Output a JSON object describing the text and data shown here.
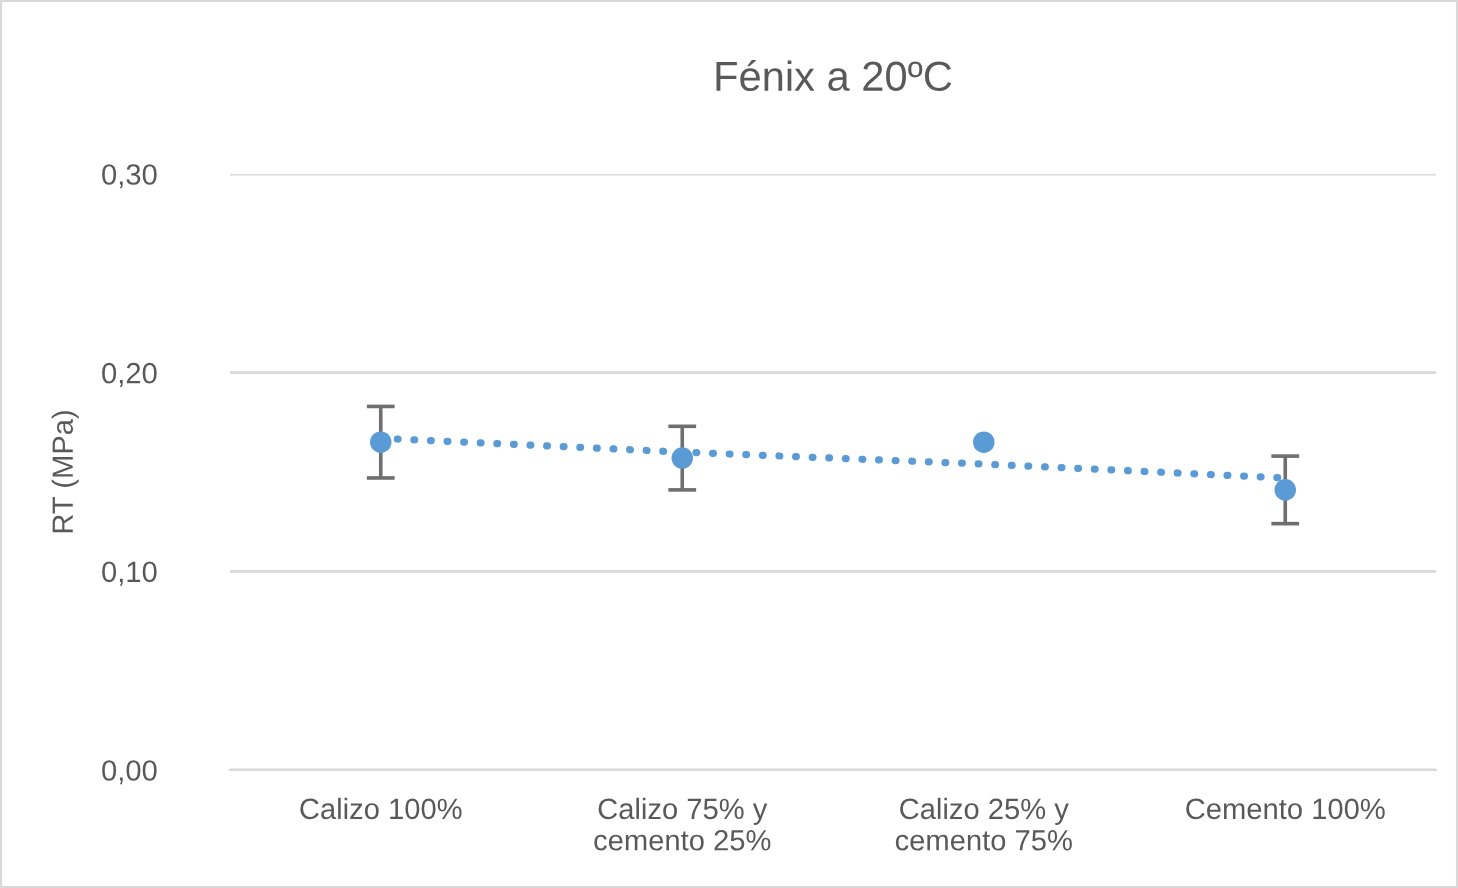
{
  "chart_data": {
    "type": "scatter",
    "title": "Fénix a 20ºC",
    "ylabel": "RT (MPa)",
    "categories": [
      "Calizo 100%",
      "Calizo 75% y\ncemento 25%",
      "Calizo 25% y\ncemento 75%",
      "Cemento 100%"
    ],
    "series": [
      {
        "color": "#5b9bd5",
        "marker": "circle",
        "values": [
          0.165,
          0.157,
          0.165,
          0.141
        ],
        "errors": [
          0.018,
          0.016,
          null,
          0.017
        ]
      },
      {
        "type": "line",
        "color": "#5b9bd5",
        "marker": "none",
        "line_style": "dotted",
        "values": [
          0.167,
          0.16,
          0.154,
          0.147
        ]
      }
    ],
    "ylim": [
      0,
      0.3
    ],
    "yticks": [
      {
        "value": 0,
        "label": "0,00"
      },
      {
        "value": 0.1,
        "label": "0,10"
      },
      {
        "value": 0.2,
        "label": "0,20"
      },
      {
        "value": 0.3,
        "label": "0,30"
      }
    ],
    "grid": "y",
    "legend": false
  }
}
